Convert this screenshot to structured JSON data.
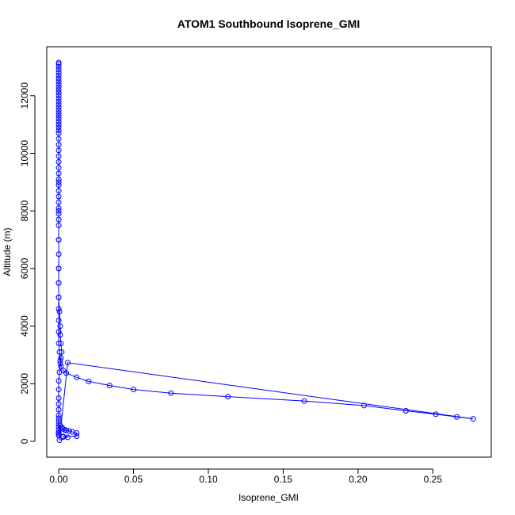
{
  "chart_data": {
    "type": "line",
    "title": "ATOM1 Southbound Isoprene_GMI",
    "xlabel": "Isoprene_GMI",
    "ylabel": "Altitude (m)",
    "xlim": [
      -0.008,
      0.289
    ],
    "ylim": [
      -550,
      13700
    ],
    "xticks": [
      0.0,
      0.05,
      0.1,
      0.15,
      0.2,
      0.25
    ],
    "xtick_labels": [
      "0.00",
      "0.05",
      "0.10",
      "0.15",
      "0.20",
      "0.25"
    ],
    "yticks": [
      0,
      2000,
      4000,
      6000,
      8000,
      10000,
      12000
    ],
    "ytick_labels": [
      "0",
      "2000",
      "4000",
      "6000",
      "8000",
      "10000",
      "12000"
    ],
    "grid": false,
    "colors": {
      "series": "#0000ff",
      "axis": "#000000"
    },
    "series": [
      {
        "marker": "open-circle",
        "x": [
          0.0,
          0.0,
          0.0,
          0.0,
          0.0,
          0.0,
          0.0,
          0.0,
          0.0,
          0.0,
          0.0,
          0.0,
          0.0,
          0.0,
          0.0,
          0.0,
          0.0,
          0.0,
          0.0,
          0.0,
          0.0,
          0.0,
          0.0,
          0.0,
          0.0,
          0.0,
          0.0,
          0.0,
          0.0,
          0.0,
          0.0,
          0.0,
          0.0,
          0.0,
          0.0,
          0.0,
          0.0,
          0.0,
          0.0,
          0.0,
          0.0,
          0.0,
          0.0,
          0.0,
          0.0,
          0.0,
          0.0,
          0.0005,
          0.001,
          0.001,
          0.0015,
          0.002,
          0.0015,
          0.001,
          0.0005,
          0.0,
          0.0,
          0.0,
          0.0,
          0.0,
          0.0,
          0.0,
          0.0,
          0.0,
          0.0,
          0.0,
          0.0,
          0.0,
          0.0,
          0.001,
          0.002,
          0.003,
          0.004,
          0.005,
          0.007,
          0.009,
          0.012,
          0.012,
          0.003,
          0.003,
          0.006,
          0.0005,
          0.006,
          0.277,
          0.266,
          0.252,
          0.232,
          0.204,
          0.164,
          0.113,
          0.075,
          0.05,
          0.034,
          0.02,
          0.012,
          0.005,
          0.003,
          0.0015,
          0.001,
          0.0005,
          0.0,
          0.0,
          0.0,
          0.0,
          0.0,
          0.0,
          0.0,
          0.0,
          0.0,
          0.0
        ],
        "y": [
          13150,
          13100,
          13000,
          12900,
          12800,
          12700,
          12600,
          12500,
          12400,
          12300,
          12200,
          12100,
          12000,
          11900,
          11800,
          11700,
          11600,
          11500,
          11400,
          11300,
          11200,
          11100,
          11000,
          10900,
          10800,
          10700,
          10500,
          10300,
          10100,
          9900,
          9700,
          9500,
          9300,
          9100,
          8900,
          8700,
          8500,
          8300,
          8100,
          7900,
          7700,
          7500,
          7000,
          6500,
          6000,
          5500,
          5000,
          4500,
          4000,
          3700,
          3400,
          3100,
          2900,
          2700,
          2400,
          2100,
          1800,
          1500,
          1300,
          1100,
          900,
          800,
          700,
          600,
          500,
          400,
          300,
          250,
          200,
          550,
          480,
          430,
          400,
          380,
          360,
          330,
          290,
          180,
          170,
          150,
          140,
          40,
          2730,
          780,
          850,
          940,
          1060,
          1240,
          1400,
          1550,
          1670,
          1800,
          1940,
          2080,
          2220,
          2370,
          2460,
          2600,
          2800,
          3100,
          3400,
          3800,
          4200,
          4600,
          5000,
          5500,
          6000,
          7000,
          8000,
          9000
        ]
      }
    ]
  }
}
